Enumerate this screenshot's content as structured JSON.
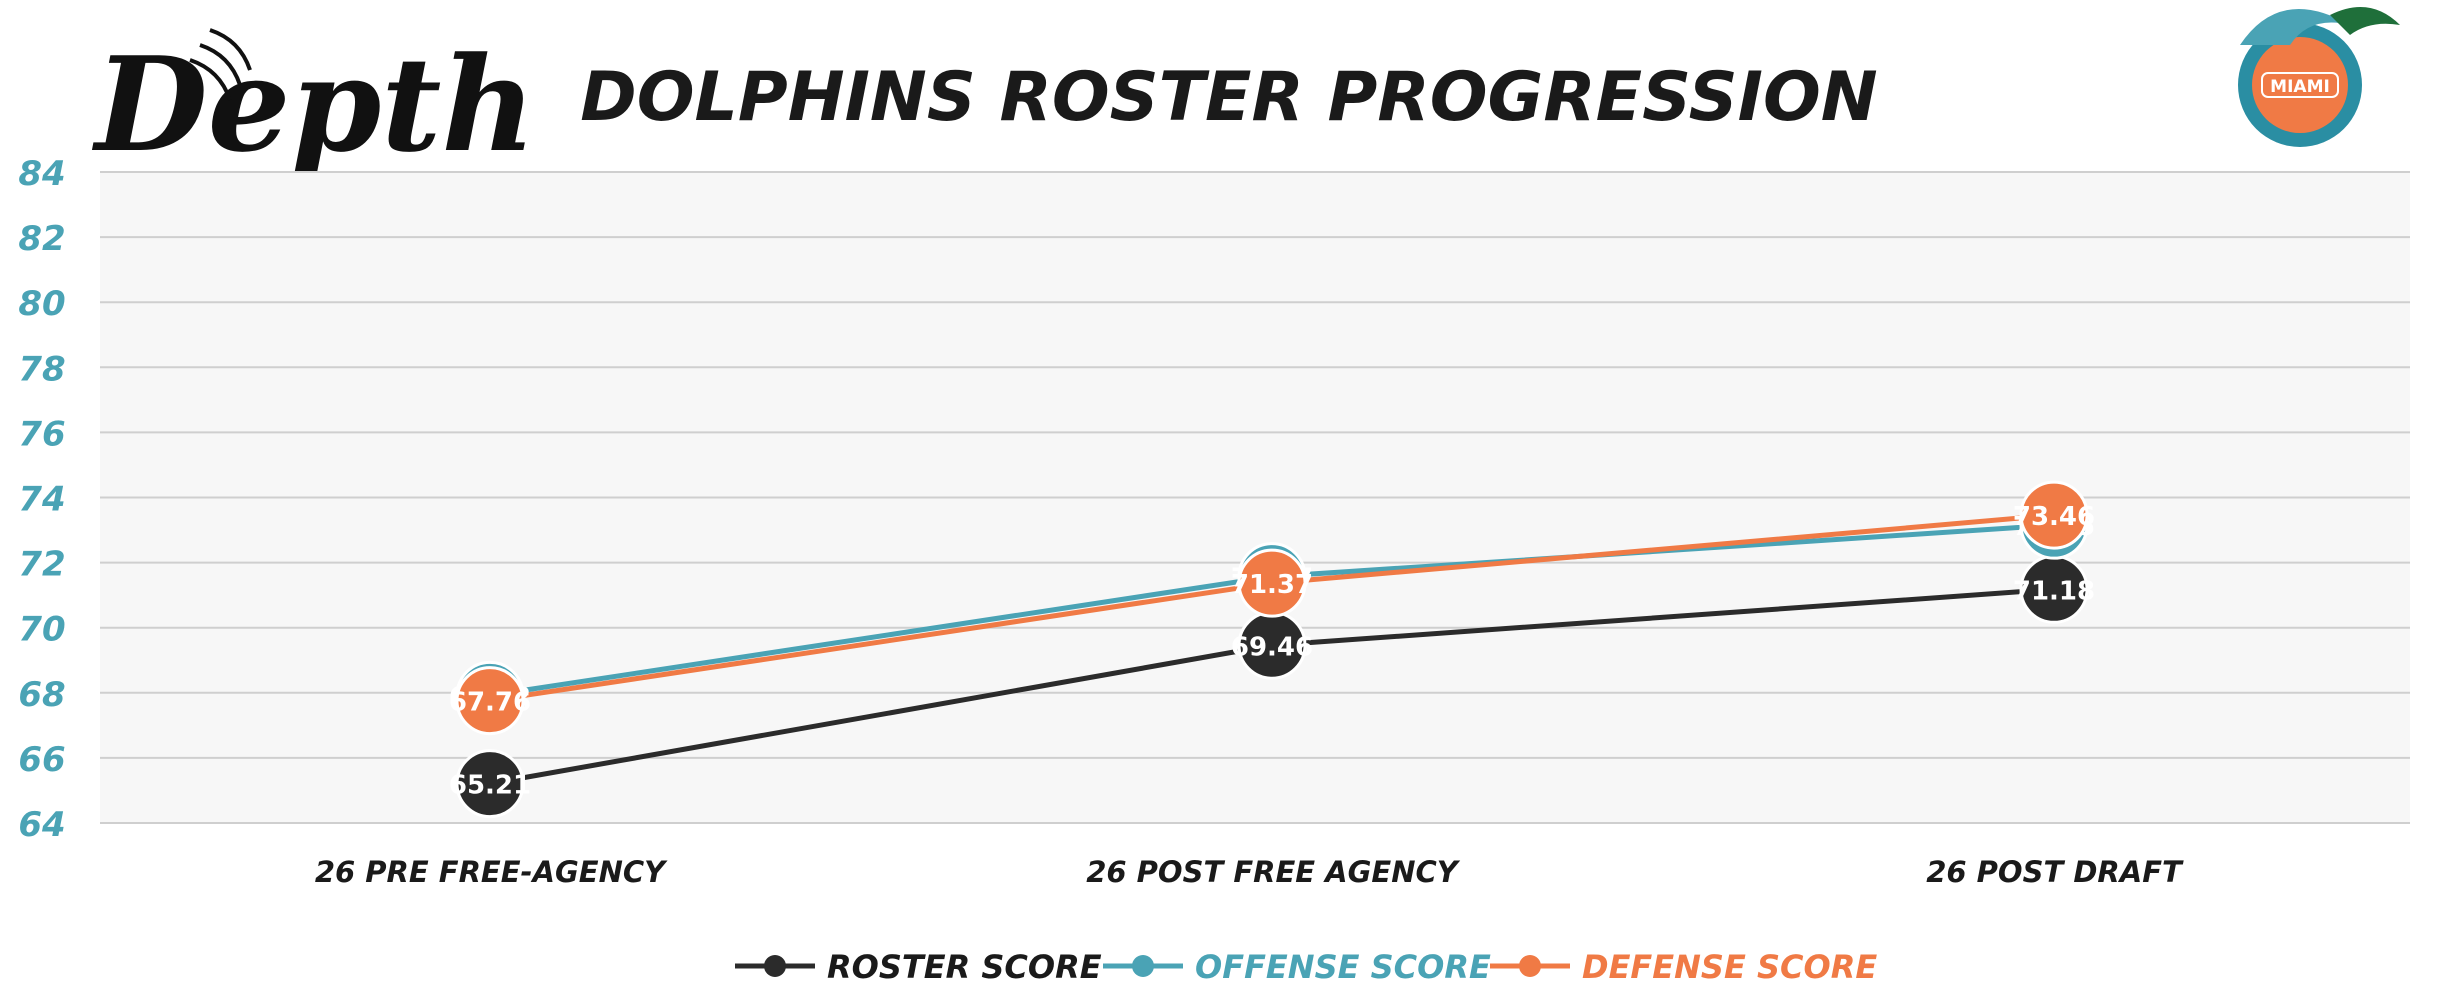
{
  "header": {
    "brand_logo_text": "Depth",
    "team_logo_text": "MIAMI"
  },
  "chart_data": {
    "type": "line",
    "title": "DOLPHINS ROSTER PROGRESSION",
    "categories": [
      "26 PRE FREE-AGENCY",
      "26 POST FREE AGENCY",
      "26 POST DRAFT"
    ],
    "ylim": [
      64,
      84
    ],
    "yticks": [
      64,
      66,
      68,
      70,
      72,
      74,
      76,
      78,
      80,
      82,
      84
    ],
    "grid": true,
    "legend_position": "bottom-center",
    "series": [
      {
        "name": "ROSTER SCORE",
        "values": [
          65.21,
          69.46,
          71.18
        ],
        "color": "#2b2b2b"
      },
      {
        "name": "OFFENSE SCORE",
        "values": [
          67.92,
          71.57,
          73.15
        ],
        "color": "#4aa3b5"
      },
      {
        "name": "DEFENSE SCORE",
        "values": [
          67.76,
          71.37,
          73.46
        ],
        "color": "#f07a45"
      }
    ],
    "colors": {
      "axis_tick": "#4aa3b5",
      "grid": "#cfcfcf",
      "plot_bg": "#f7f7f7",
      "text": "#1a1a1a"
    }
  }
}
